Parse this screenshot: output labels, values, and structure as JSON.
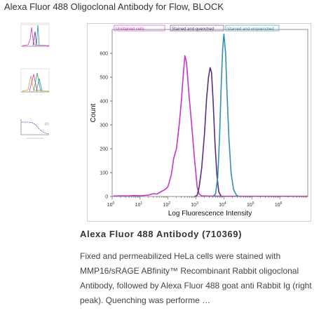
{
  "page": {
    "title": "Alexa Fluor 488 Oligoclonal Antibody for Flow, BLOCK"
  },
  "thumbnails": [
    {
      "icon": "histogram-thumbnail-icon"
    },
    {
      "icon": "overlay-histogram-thumbnail-icon"
    },
    {
      "icon": "dot-curve-thumbnail-icon"
    }
  ],
  "main_image": {
    "caption_title": "Alexa Fluor 488 Antibody (710369)",
    "caption_text": "Fixed and permeabilized HeLa cells were stained with MMP16/sRAGE ABfinity™ Recombinant Rabbit oligoclonal Antibody, followed by Alexa Fluor 488 goat anti Rabbit Ig (right peak). Quenching was performe …"
  },
  "chart_data": {
    "type": "line",
    "title": "",
    "xlabel": "Log Fluorescence Intensity",
    "ylabel": "Count",
    "x_scale": "log",
    "xlim": [
      1,
      10000000
    ],
    "ylim": [
      0,
      700
    ],
    "x_ticks": [
      {
        "base": "10",
        "exp": "0",
        "value": 1
      },
      {
        "base": "10",
        "exp": "1",
        "value": 10
      },
      {
        "base": "10",
        "exp": "2",
        "value": 100
      },
      {
        "base": "10",
        "exp": "3",
        "value": 1000
      },
      {
        "base": "10",
        "exp": "4",
        "value": 10000
      },
      {
        "base": "10",
        "exp": "5",
        "value": 100000
      },
      {
        "base": "10",
        "exp": "6",
        "value": 1000000
      }
    ],
    "y_ticks": [
      "0",
      "100",
      "200",
      "300",
      "400",
      "500",
      "600"
    ],
    "legend_placement": "top",
    "series": [
      {
        "name": "Unstained cells",
        "color": "#cc33cc",
        "points": [
          [
            1.1,
            2
          ],
          [
            2,
            3
          ],
          [
            3,
            3
          ],
          [
            4,
            2
          ],
          [
            6,
            4
          ],
          [
            10,
            3
          ],
          [
            20,
            6
          ],
          [
            30,
            12
          ],
          [
            40,
            10
          ],
          [
            60,
            22
          ],
          [
            80,
            30
          ],
          [
            100,
            42
          ],
          [
            130,
            90
          ],
          [
            160,
            160
          ],
          [
            200,
            200
          ],
          [
            250,
            300
          ],
          [
            300,
            400
          ],
          [
            350,
            510
          ],
          [
            400,
            590
          ],
          [
            460,
            560
          ],
          [
            550,
            440
          ],
          [
            700,
            300
          ],
          [
            900,
            150
          ],
          [
            1100,
            40
          ],
          [
            1300,
            10
          ],
          [
            1600,
            3
          ],
          [
            2500,
            2
          ],
          [
            10000,
            1
          ],
          [
            10000000,
            1
          ]
        ]
      },
      {
        "name": "Stained and quenched",
        "color": "#5b2d82",
        "points": [
          [
            900,
            0
          ],
          [
            1100,
            5
          ],
          [
            1300,
            40
          ],
          [
            1600,
            120
          ],
          [
            2000,
            260
          ],
          [
            2400,
            410
          ],
          [
            2800,
            500
          ],
          [
            3200,
            540
          ],
          [
            3600,
            520
          ],
          [
            4100,
            400
          ],
          [
            4800,
            220
          ],
          [
            5600,
            90
          ],
          [
            6500,
            20
          ],
          [
            8000,
            0
          ]
        ]
      },
      {
        "name": "Stained and unquenched",
        "color": "#2f8fb5",
        "points": [
          [
            4000,
            0
          ],
          [
            5000,
            10
          ],
          [
            6000,
            80
          ],
          [
            7000,
            260
          ],
          [
            8000,
            470
          ],
          [
            9000,
            620
          ],
          [
            10000,
            680
          ],
          [
            11500,
            600
          ],
          [
            13000,
            420
          ],
          [
            15000,
            250
          ],
          [
            18000,
            100
          ],
          [
            22000,
            30
          ],
          [
            28000,
            5
          ],
          [
            35000,
            0
          ]
        ]
      }
    ]
  }
}
